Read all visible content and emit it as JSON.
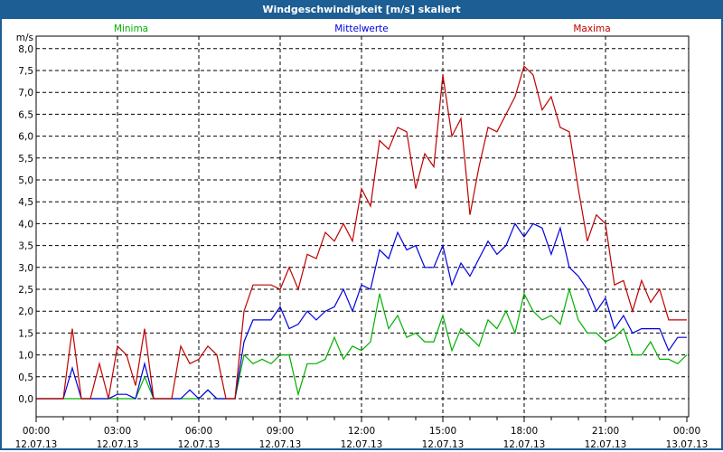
{
  "window": {
    "title": "Windgeschwindigkeit [m/s] skaliert"
  },
  "chart_data": {
    "type": "line",
    "title": "Windgeschwindigkeit [m/s] skaliert",
    "ylabel": "m/s",
    "ylim": [
      0,
      8
    ],
    "xlim_hours": [
      0,
      24
    ],
    "sample_interval_hours": 0.3333,
    "grid": true,
    "y_ticks": [
      "0,0",
      "0,5",
      "1,0",
      "1,5",
      "2,0",
      "2,5",
      "3,0",
      "3,5",
      "4,0",
      "4,5",
      "5,0",
      "5,5",
      "6,0",
      "6,5",
      "7,0",
      "7,5",
      "8,0"
    ],
    "x_ticks": [
      {
        "time": "00:00",
        "date": "12.07.13"
      },
      {
        "time": "03:00",
        "date": "12.07.13"
      },
      {
        "time": "06:00",
        "date": "12.07.13"
      },
      {
        "time": "09:00",
        "date": "12.07.13"
      },
      {
        "time": "12:00",
        "date": "12.07.13"
      },
      {
        "time": "15:00",
        "date": "12.07.13"
      },
      {
        "time": "18:00",
        "date": "12.07.13"
      },
      {
        "time": "21:00",
        "date": "12.07.13"
      },
      {
        "time": "00:00",
        "date": "13.07.13"
      }
    ],
    "series": [
      {
        "name": "Minima",
        "color": "#00b000",
        "values": [
          0,
          0,
          0,
          0,
          0,
          0,
          0,
          0,
          0,
          0,
          0,
          0,
          0.5,
          0,
          0,
          0,
          0,
          0,
          0,
          0.2,
          0,
          0,
          0,
          1.0,
          0.8,
          0.9,
          0.8,
          1.0,
          1.0,
          0.1,
          0.8,
          0.8,
          0.9,
          1.4,
          0.9,
          1.2,
          1.1,
          1.3,
          2.4,
          1.6,
          1.9,
          1.4,
          1.5,
          1.3,
          1.3,
          1.9,
          1.1,
          1.6,
          1.4,
          1.2,
          1.8,
          1.6,
          2.0,
          1.5,
          2.4,
          2.0,
          1.8,
          1.9,
          1.7,
          2.5,
          1.8,
          1.5,
          1.5,
          1.3,
          1.4,
          1.6,
          1.0,
          1.0,
          1.3,
          0.9,
          0.9,
          0.8,
          1.0
        ]
      },
      {
        "name": "Mittelwerte",
        "color": "#0000e0",
        "values": [
          0,
          0,
          0,
          0,
          0.7,
          0,
          0,
          0,
          0,
          0.1,
          0.1,
          0,
          0.8,
          0,
          0,
          0,
          0,
          0.2,
          0,
          0.2,
          0,
          0,
          0,
          1.3,
          1.8,
          1.8,
          1.8,
          2.1,
          1.6,
          1.7,
          2.0,
          1.8,
          2.0,
          2.1,
          2.5,
          2.0,
          2.6,
          2.5,
          3.4,
          3.2,
          3.8,
          3.4,
          3.5,
          3.0,
          3.0,
          3.5,
          2.6,
          3.1,
          2.8,
          3.2,
          3.6,
          3.3,
          3.5,
          4.0,
          3.7,
          4.0,
          3.9,
          3.3,
          3.9,
          3.0,
          2.8,
          2.5,
          2.0,
          2.3,
          1.6,
          1.9,
          1.5,
          1.6,
          1.6,
          1.6,
          1.1,
          1.4,
          1.4
        ]
      },
      {
        "name": "Maxima",
        "color": "#c00000",
        "values": [
          0,
          0,
          0,
          0,
          1.6,
          0,
          0,
          0.8,
          0,
          1.2,
          1.0,
          0.3,
          1.6,
          0,
          0,
          0,
          1.2,
          0.8,
          0.9,
          1.2,
          1.0,
          0,
          0,
          2.0,
          2.6,
          2.6,
          2.6,
          2.5,
          3.0,
          2.5,
          3.3,
          3.2,
          3.8,
          3.6,
          4.0,
          3.6,
          4.8,
          4.4,
          5.9,
          5.7,
          6.2,
          6.1,
          4.8,
          5.6,
          5.3,
          7.4,
          6.0,
          6.4,
          4.2,
          5.3,
          6.2,
          6.1,
          6.5,
          6.9,
          7.6,
          7.4,
          6.6,
          6.9,
          6.2,
          6.1,
          4.8,
          3.6,
          4.2,
          4.0,
          2.6,
          2.7,
          2.0,
          2.7,
          2.2,
          2.5,
          1.8,
          1.8,
          1.8
        ]
      }
    ]
  }
}
